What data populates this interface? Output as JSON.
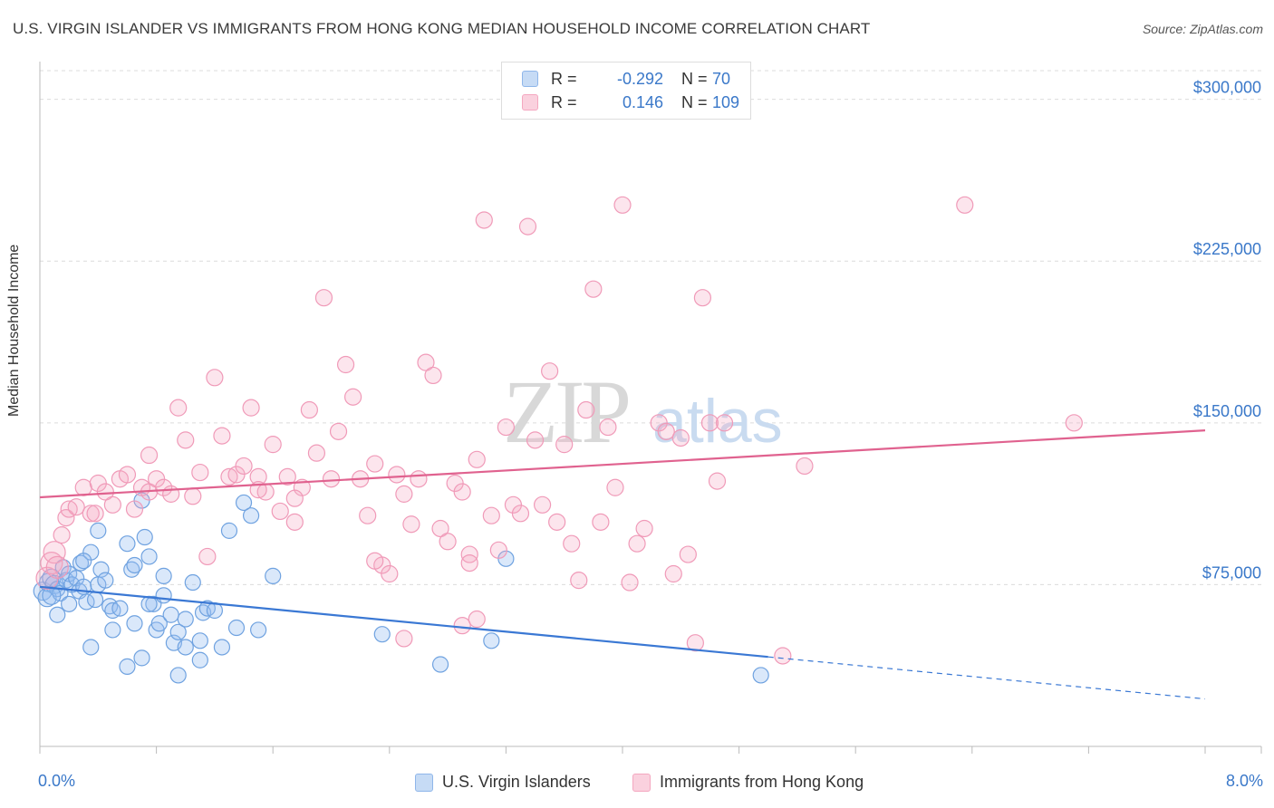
{
  "title": "U.S. VIRGIN ISLANDER VS IMMIGRANTS FROM HONG KONG MEDIAN HOUSEHOLD INCOME CORRELATION CHART",
  "source": "Source: ZipAtlas.com",
  "watermark": {
    "zip": "ZIP",
    "atlas": "atlas"
  },
  "stats": [
    {
      "r_label": "R =",
      "r_value": "-0.292",
      "n_label": "N =",
      "n_value": "70",
      "color": "#8fb6ea"
    },
    {
      "r_label": "R =",
      "r_value": "0.146",
      "n_label": "N =",
      "n_value": "109",
      "color": "#f4a7c0"
    }
  ],
  "legend": [
    {
      "label": "U.S. Virgin Islanders",
      "color": "#8fb6ea"
    },
    {
      "label": "Immigrants from Hong Kong",
      "color": "#f4a7c0"
    }
  ],
  "chart_data": {
    "type": "scatter",
    "title": "U.S. VIRGIN ISLANDER VS IMMIGRANTS FROM HONG KONG MEDIAN HOUSEHOLD INCOME CORRELATION CHART",
    "xlabel": "",
    "ylabel": "Median Household Income",
    "xlim": [
      0,
      8
    ],
    "ylim": [
      0,
      320000
    ],
    "x_ticks": [
      0,
      8
    ],
    "x_tick_labels": [
      "0.0%",
      "8.0%"
    ],
    "y_ticks": [
      75000,
      150000,
      225000,
      300000
    ],
    "y_tick_labels": [
      "$75,000",
      "$150,000",
      "$225,000",
      "$300,000"
    ],
    "grid": true,
    "legend_position": "bottom",
    "series": [
      {
        "name": "U.S. Virgin Islanders",
        "color": "#6fa2e0",
        "trend": {
          "x": [
            0,
            5.0
          ],
          "y": [
            74000,
            41500
          ],
          "dashed_to_x": 8.0,
          "dashed_to_y": 22000,
          "color": "#3a78d4"
        },
        "points": [
          [
            0.02,
            72000
          ],
          [
            0.05,
            69000
          ],
          [
            0.06,
            76000
          ],
          [
            0.08,
            78000
          ],
          [
            0.1,
            75000
          ],
          [
            0.12,
            73000
          ],
          [
            0.14,
            71000
          ],
          [
            0.16,
            83000
          ],
          [
            0.18,
            77000
          ],
          [
            0.2,
            80000
          ],
          [
            0.22,
            75000
          ],
          [
            0.25,
            78000
          ],
          [
            0.27,
            72000
          ],
          [
            0.28,
            85000
          ],
          [
            0.3,
            74000
          ],
          [
            0.32,
            67000
          ],
          [
            0.35,
            90000
          ],
          [
            0.38,
            68000
          ],
          [
            0.4,
            75000
          ],
          [
            0.42,
            82000
          ],
          [
            0.45,
            77000
          ],
          [
            0.48,
            65000
          ],
          [
            0.5,
            63000
          ],
          [
            0.55,
            64000
          ],
          [
            0.6,
            94000
          ],
          [
            0.63,
            82000
          ],
          [
            0.65,
            57000
          ],
          [
            0.7,
            114000
          ],
          [
            0.72,
            97000
          ],
          [
            0.75,
            88000
          ],
          [
            0.78,
            66000
          ],
          [
            0.8,
            54000
          ],
          [
            0.82,
            57000
          ],
          [
            0.85,
            79000
          ],
          [
            0.9,
            61000
          ],
          [
            0.92,
            48000
          ],
          [
            0.95,
            53000
          ],
          [
            1.0,
            59000
          ],
          [
            1.05,
            76000
          ],
          [
            1.1,
            49000
          ],
          [
            1.12,
            62000
          ],
          [
            1.15,
            64000
          ],
          [
            1.2,
            63000
          ],
          [
            1.25,
            46000
          ],
          [
            1.3,
            100000
          ],
          [
            1.35,
            55000
          ],
          [
            1.4,
            113000
          ],
          [
            1.45,
            107000
          ],
          [
            1.5,
            54000
          ],
          [
            1.6,
            79000
          ],
          [
            0.12,
            61000
          ],
          [
            0.2,
            66000
          ],
          [
            0.3,
            86000
          ],
          [
            0.35,
            46000
          ],
          [
            0.4,
            100000
          ],
          [
            0.5,
            54000
          ],
          [
            0.6,
            37000
          ],
          [
            0.65,
            84000
          ],
          [
            0.7,
            41000
          ],
          [
            0.75,
            66000
          ],
          [
            0.85,
            70000
          ],
          [
            0.95,
            33000
          ],
          [
            1.0,
            46000
          ],
          [
            1.1,
            40000
          ],
          [
            2.35,
            52000
          ],
          [
            2.75,
            38000
          ],
          [
            3.1,
            49000
          ],
          [
            3.2,
            87000
          ],
          [
            4.95,
            33000
          ],
          [
            0.08,
            70000
          ]
        ]
      },
      {
        "name": "Immigrants from Hong Kong",
        "color": "#f09ab8",
        "trend": {
          "x": [
            0,
            8.0
          ],
          "y": [
            115500,
            146500
          ],
          "color": "#e0628f"
        },
        "points": [
          [
            0.05,
            78000
          ],
          [
            0.08,
            85000
          ],
          [
            0.1,
            90000
          ],
          [
            0.12,
            83000
          ],
          [
            0.15,
            98000
          ],
          [
            0.18,
            106000
          ],
          [
            0.2,
            110000
          ],
          [
            0.25,
            111000
          ],
          [
            0.3,
            120000
          ],
          [
            0.35,
            108000
          ],
          [
            0.38,
            108000
          ],
          [
            0.4,
            122000
          ],
          [
            0.45,
            118000
          ],
          [
            0.5,
            112000
          ],
          [
            0.55,
            124000
          ],
          [
            0.6,
            126000
          ],
          [
            0.65,
            110000
          ],
          [
            0.7,
            120000
          ],
          [
            0.75,
            118000
          ],
          [
            0.8,
            124000
          ],
          [
            0.85,
            120000
          ],
          [
            0.9,
            117000
          ],
          [
            0.95,
            157000
          ],
          [
            1.0,
            142000
          ],
          [
            1.05,
            116000
          ],
          [
            1.1,
            127000
          ],
          [
            1.15,
            88000
          ],
          [
            1.2,
            171000
          ],
          [
            1.25,
            144000
          ],
          [
            1.3,
            125000
          ],
          [
            1.35,
            126000
          ],
          [
            1.4,
            130000
          ],
          [
            1.45,
            157000
          ],
          [
            1.5,
            125000
          ],
          [
            1.55,
            118000
          ],
          [
            1.6,
            140000
          ],
          [
            1.65,
            109000
          ],
          [
            1.7,
            125000
          ],
          [
            1.75,
            104000
          ],
          [
            1.8,
            120000
          ],
          [
            1.85,
            156000
          ],
          [
            1.9,
            136000
          ],
          [
            1.95,
            208000
          ],
          [
            2.0,
            124000
          ],
          [
            2.05,
            146000
          ],
          [
            2.1,
            177000
          ],
          [
            2.15,
            162000
          ],
          [
            2.2,
            124000
          ],
          [
            2.25,
            107000
          ],
          [
            2.3,
            131000
          ],
          [
            2.35,
            84000
          ],
          [
            2.4,
            80000
          ],
          [
            2.45,
            126000
          ],
          [
            2.5,
            117000
          ],
          [
            2.55,
            103000
          ],
          [
            2.6,
            124000
          ],
          [
            2.65,
            178000
          ],
          [
            2.7,
            172000
          ],
          [
            2.75,
            101000
          ],
          [
            2.8,
            95000
          ],
          [
            2.85,
            122000
          ],
          [
            2.9,
            118000
          ],
          [
            2.95,
            89000
          ],
          [
            3.0,
            133000
          ],
          [
            3.05,
            244000
          ],
          [
            3.1,
            107000
          ],
          [
            3.15,
            91000
          ],
          [
            3.2,
            148000
          ],
          [
            3.25,
            112000
          ],
          [
            3.3,
            108000
          ],
          [
            3.35,
            241000
          ],
          [
            3.4,
            142000
          ],
          [
            3.45,
            112000
          ],
          [
            3.5,
            174000
          ],
          [
            3.55,
            104000
          ],
          [
            3.6,
            140000
          ],
          [
            3.65,
            94000
          ],
          [
            3.7,
            77000
          ],
          [
            3.75,
            156000
          ],
          [
            3.8,
            212000
          ],
          [
            3.85,
            104000
          ],
          [
            3.9,
            148000
          ],
          [
            3.95,
            120000
          ],
          [
            4.0,
            251000
          ],
          [
            4.05,
            76000
          ],
          [
            4.1,
            94000
          ],
          [
            4.15,
            101000
          ],
          [
            4.25,
            150000
          ],
          [
            4.3,
            146000
          ],
          [
            4.35,
            80000
          ],
          [
            4.4,
            143000
          ],
          [
            4.45,
            89000
          ],
          [
            4.5,
            48000
          ],
          [
            4.55,
            208000
          ],
          [
            4.6,
            150000
          ],
          [
            4.65,
            123000
          ],
          [
            4.7,
            150000
          ],
          [
            5.1,
            42000
          ],
          [
            5.25,
            130000
          ],
          [
            6.35,
            251000
          ],
          [
            7.1,
            150000
          ],
          [
            1.75,
            115000
          ],
          [
            2.3,
            86000
          ],
          [
            2.9,
            56000
          ],
          [
            3.0,
            59000
          ],
          [
            2.5,
            50000
          ],
          [
            2.95,
            85000
          ],
          [
            1.5,
            119000
          ],
          [
            0.75,
            135000
          ]
        ]
      }
    ]
  }
}
